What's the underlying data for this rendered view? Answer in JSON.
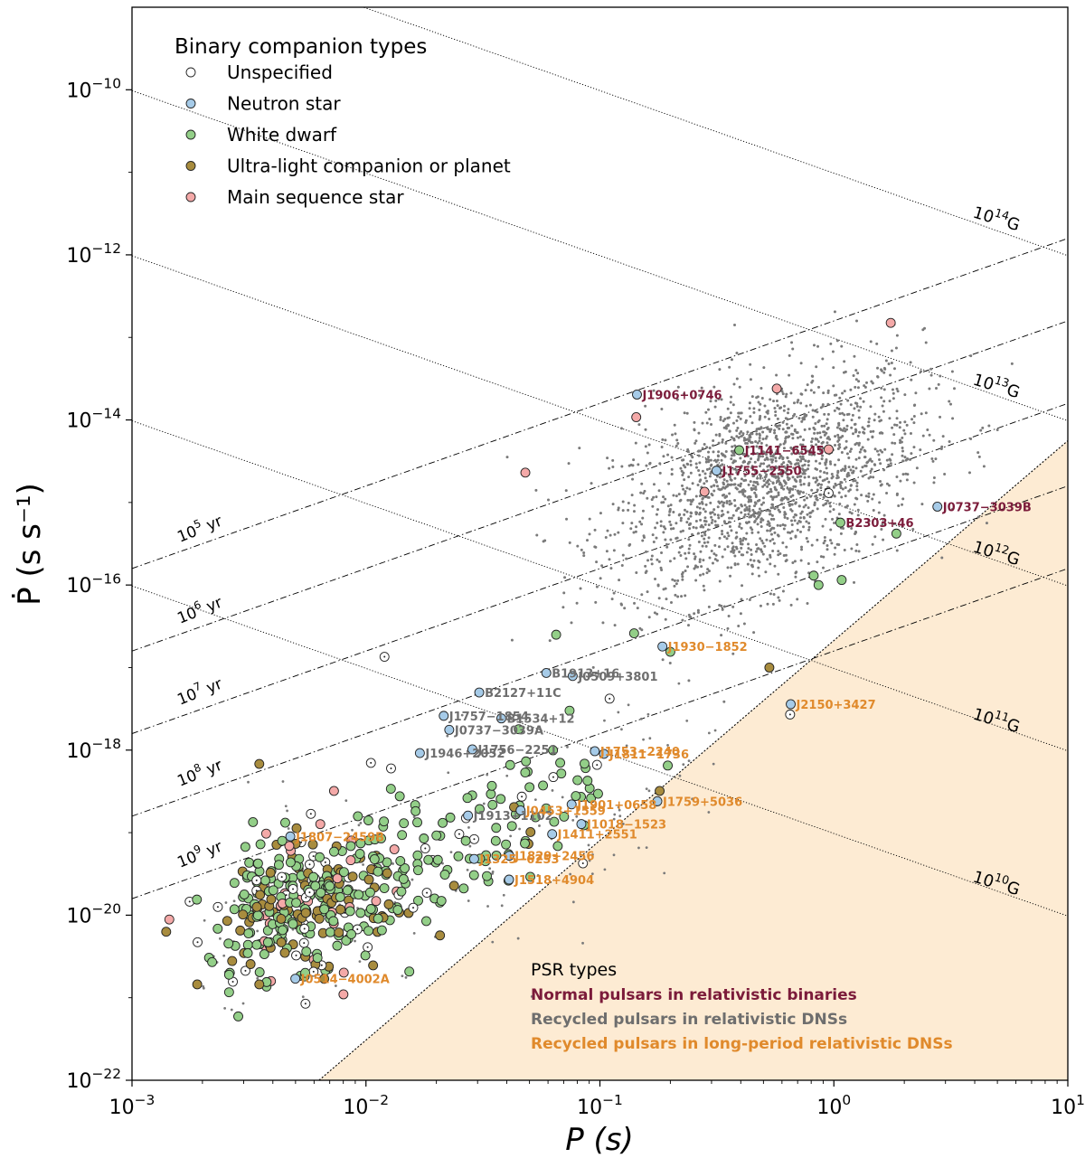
{
  "chart_data": {
    "type": "scatter",
    "xscale": "log",
    "yscale": "log",
    "xlim": [
      0.001,
      10
    ],
    "ylim": [
      1e-22,
      1e-09
    ],
    "xlabel": "P (s)",
    "ylabel": "Ṗ (s s⁻¹)",
    "x_ticks": [
      {
        "v": 0.001,
        "base": "10",
        "exp": "−3"
      },
      {
        "v": 0.01,
        "base": "10",
        "exp": "−2"
      },
      {
        "v": 0.1,
        "base": "10",
        "exp": "−1"
      },
      {
        "v": 1,
        "base": "10",
        "exp": "0"
      },
      {
        "v": 10,
        "base": "10",
        "exp": "1"
      }
    ],
    "y_ticks": [
      {
        "v": 1e-22,
        "base": "10",
        "exp": "−22"
      },
      {
        "v": 1e-20,
        "base": "10",
        "exp": "−20"
      },
      {
        "v": 1e-18,
        "base": "10",
        "exp": "−18"
      },
      {
        "v": 1e-16,
        "base": "10",
        "exp": "−16"
      },
      {
        "v": 1e-14,
        "base": "10",
        "exp": "−14"
      },
      {
        "v": 1e-12,
        "base": "10",
        "exp": "−12"
      },
      {
        "v": 1e-10,
        "base": "10",
        "exp": "−10"
      }
    ],
    "legend": {
      "title": "Binary companion types",
      "placement": "top-left",
      "entries": [
        {
          "key": "unspecified",
          "label": "Unspecified",
          "color": "#ffffff"
        },
        {
          "key": "ns",
          "label": "Neutron star",
          "color": "#a6cbe8"
        },
        {
          "key": "wd",
          "label": "White dwarf",
          "color": "#93cf88"
        },
        {
          "key": "ul",
          "label": "Ultra-light companion or planet",
          "color": "#a88c3e"
        },
        {
          "key": "ms",
          "label": "Main sequence star",
          "color": "#f4a9a8"
        }
      ]
    },
    "psr_types": {
      "title": "PSR types",
      "entries": [
        {
          "label": "Normal pulsars in relativistic binaries",
          "color": "#7b1b3a"
        },
        {
          "label": "Recycled pulsars in relativistic DNSs",
          "color": "#6e6e6e"
        },
        {
          "label": "Recycled pulsars in long-period relativistic DNSs",
          "color": "#e08a2c"
        }
      ]
    },
    "field_lines": [
      {
        "B": 10000000000.0,
        "base": "10",
        "exp": "10",
        "unit": "G"
      },
      {
        "B": 100000000000.0,
        "base": "10",
        "exp": "11",
        "unit": "G"
      },
      {
        "B": 1000000000000.0,
        "base": "10",
        "exp": "12",
        "unit": "G"
      },
      {
        "B": 10000000000000.0,
        "base": "10",
        "exp": "13",
        "unit": "G"
      },
      {
        "B": 100000000000000.0,
        "base": "10",
        "exp": "14",
        "unit": "G"
      }
    ],
    "age_lines": [
      {
        "tau": 100000.0,
        "base": "10",
        "exp": "5",
        "unit": "yr"
      },
      {
        "tau": 1000000.0,
        "base": "10",
        "exp": "6",
        "unit": "yr"
      },
      {
        "tau": 10000000.0,
        "base": "10",
        "exp": "7",
        "unit": "yr"
      },
      {
        "tau": 100000000.0,
        "base": "10",
        "exp": "8",
        "unit": "yr"
      },
      {
        "tau": 1000000000.0,
        "base": "10",
        "exp": "9",
        "unit": "yr"
      }
    ],
    "death_line": {
      "point1": [
        0.0063,
        1e-22
      ],
      "point2": [
        10,
        5.6e-15
      ]
    },
    "death_region_color": "#fdebd3",
    "labeled_pulsars": [
      {
        "name": "J1906+0746",
        "p": 0.144,
        "pdot": 2.03e-14,
        "comp": "ns",
        "group": "normal"
      },
      {
        "name": "J1141−6545",
        "p": 0.394,
        "pdot": 4.3e-15,
        "comp": "wd",
        "group": "normal"
      },
      {
        "name": "J1755−2550",
        "p": 0.315,
        "pdot": 2.43e-15,
        "comp": "ns",
        "group": "normal"
      },
      {
        "name": "J0737−3039B",
        "p": 2.77,
        "pdot": 8.9e-16,
        "comp": "ns",
        "group": "normal"
      },
      {
        "name": "B2303+46",
        "p": 1.066,
        "pdot": 5.7e-16,
        "comp": "wd",
        "group": "normal"
      },
      {
        "name": "B1913+16",
        "p": 0.059,
        "pdot": 8.6e-18,
        "comp": "ns",
        "group": "recycled"
      },
      {
        "name": "J0509+3801",
        "p": 0.0765,
        "pdot": 7.9e-18,
        "comp": "ns",
        "group": "recycled"
      },
      {
        "name": "B2127+11C",
        "p": 0.0305,
        "pdot": 4.99e-18,
        "comp": "ns",
        "group": "recycled"
      },
      {
        "name": "J1757−1854",
        "p": 0.0215,
        "pdot": 2.6e-18,
        "comp": "ns",
        "group": "recycled"
      },
      {
        "name": "B1534+12",
        "p": 0.0379,
        "pdot": 2.42e-18,
        "comp": "ns",
        "group": "recycled"
      },
      {
        "name": "J0737−3039A",
        "p": 0.0227,
        "pdot": 1.76e-18,
        "comp": "ns",
        "group": "recycled"
      },
      {
        "name": "J1756−2251",
        "p": 0.0285,
        "pdot": 1.02e-18,
        "comp": "ns",
        "group": "recycled"
      },
      {
        "name": "J1946+2052",
        "p": 0.017,
        "pdot": 9.2e-19,
        "comp": "ns",
        "group": "recycled"
      },
      {
        "name": "J1913+1102",
        "p": 0.0273,
        "pdot": 1.61e-19,
        "comp": "ns",
        "group": "recycled"
      },
      {
        "name": "J1930−1852",
        "p": 0.185,
        "pdot": 1.8e-17,
        "comp": "ns",
        "group": "longdns"
      },
      {
        "name": "J2150+3427",
        "p": 0.654,
        "pdot": 3.6e-18,
        "comp": "ns",
        "group": "longdns"
      },
      {
        "name": "J1753−2240",
        "p": 0.0951,
        "pdot": 9.7e-19,
        "comp": "ns",
        "group": "longdns"
      },
      {
        "name": "J1811−1736",
        "p": 0.104,
        "pdot": 9e-19,
        "comp": "ns",
        "group": "longdns"
      },
      {
        "name": "J1759+5036",
        "p": 0.176,
        "pdot": 2.4e-19,
        "comp": "ns",
        "group": "longdns"
      },
      {
        "name": "J1901+0658",
        "p": 0.0757,
        "pdot": 2.2e-19,
        "comp": "ns",
        "group": "longdns"
      },
      {
        "name": "J0453+1559",
        "p": 0.0458,
        "pdot": 1.86e-19,
        "comp": "ns",
        "group": "longdns"
      },
      {
        "name": "J1018−1523",
        "p": 0.0833,
        "pdot": 1.27e-19,
        "comp": "ns",
        "group": "longdns"
      },
      {
        "name": "J1411+2551",
        "p": 0.0625,
        "pdot": 9.6e-20,
        "comp": "ns",
        "group": "longdns"
      },
      {
        "name": "J1807−2459B",
        "p": 0.00475,
        "pdot": 9e-20,
        "comp": "ns",
        "group": "longdns"
      },
      {
        "name": "J1829+2456",
        "p": 0.041,
        "pdot": 5.25e-20,
        "comp": "ns",
        "group": "longdns"
      },
      {
        "name": "J1325−6253",
        "p": 0.029,
        "pdot": 4.8e-20,
        "comp": "ns",
        "group": "longdns"
      },
      {
        "name": "J1518+4904",
        "p": 0.0409,
        "pdot": 2.7e-20,
        "comp": "ns",
        "group": "longdns"
      },
      {
        "name": "J0514−4002A",
        "p": 0.00499,
        "pdot": 1.7e-21,
        "comp": "ns",
        "group": "longdns"
      }
    ],
    "unlabeled_binaries": [
      {
        "p": 1.75,
        "pdot": 1.5e-13,
        "comp": "ms"
      },
      {
        "p": 0.57,
        "pdot": 2.4e-14,
        "comp": "ms"
      },
      {
        "p": 0.143,
        "pdot": 1.08e-14,
        "comp": "ms"
      },
      {
        "p": 0.048,
        "pdot": 2.3e-15,
        "comp": "ms"
      },
      {
        "p": 0.28,
        "pdot": 1.35e-15,
        "comp": "ms"
      },
      {
        "p": 0.95,
        "pdot": 4.4e-15,
        "comp": "ms"
      },
      {
        "p": 0.95,
        "pdot": 1.3e-15,
        "comp": "unspecified"
      },
      {
        "p": 1.85,
        "pdot": 4.2e-16,
        "comp": "wd"
      },
      {
        "p": 0.82,
        "pdot": 1.3e-16,
        "comp": "wd"
      },
      {
        "p": 0.86,
        "pdot": 1e-16,
        "comp": "wd"
      },
      {
        "p": 1.08,
        "pdot": 1.15e-16,
        "comp": "wd"
      },
      {
        "p": 0.53,
        "pdot": 1e-17,
        "comp": "ul"
      },
      {
        "p": 0.2,
        "pdot": 1.55e-17,
        "comp": "wd"
      },
      {
        "p": 0.14,
        "pdot": 2.6e-17,
        "comp": "wd"
      },
      {
        "p": 0.065,
        "pdot": 2.5e-17,
        "comp": "wd"
      },
      {
        "p": 0.65,
        "pdot": 2.7e-18,
        "comp": "unspecified"
      },
      {
        "p": 0.195,
        "pdot": 6.5e-19,
        "comp": "wd"
      },
      {
        "p": 0.18,
        "pdot": 3.2e-19,
        "comp": "ul"
      },
      {
        "p": 0.012,
        "pdot": 1.35e-17,
        "comp": "unspecified"
      },
      {
        "p": 0.11,
        "pdot": 4.2e-18,
        "comp": "unspecified"
      },
      {
        "p": 0.0035,
        "pdot": 6.8e-19,
        "comp": "ul"
      },
      {
        "p": 0.0073,
        "pdot": 3.2e-19,
        "comp": "ms"
      },
      {
        "p": 0.0105,
        "pdot": 7e-19,
        "comp": "unspecified"
      },
      {
        "p": 0.0128,
        "pdot": 6e-19,
        "comp": "unspecified"
      },
      {
        "p": 0.0022,
        "pdot": 2.7e-21,
        "comp": "wd"
      },
      {
        "p": 0.0045,
        "pdot": 3.5e-21,
        "comp": "ul"
      },
      {
        "p": 0.0035,
        "pdot": 1.45e-21,
        "comp": "ul"
      },
      {
        "p": 0.0026,
        "pdot": 1.9e-21,
        "comp": "wd"
      },
      {
        "p": 0.0055,
        "pdot": 2e-21,
        "comp": "wd"
      },
      {
        "p": 0.0019,
        "pdot": 1.45e-21,
        "comp": "ul"
      },
      {
        "p": 0.0014,
        "pdot": 6.3e-21,
        "comp": "ul"
      }
    ]
  }
}
